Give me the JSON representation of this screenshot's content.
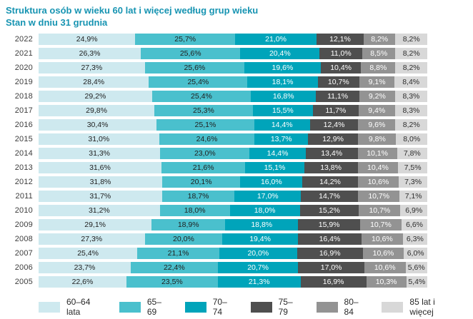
{
  "title": {
    "line1": "Struktura osób w wieku 60 lat i więcej według grup wieku",
    "line2": "Stan w dniu 31 grudnia"
  },
  "colors": {
    "title_text": "#1794b2",
    "year_label_text": "#3d3d3d",
    "background": "#ffffff"
  },
  "chart_data": {
    "type": "bar",
    "orientation": "horizontal",
    "stacked": true,
    "percent_total": 100,
    "unit": "%",
    "value_format": "comma-decimal-percent",
    "legend_position": "bottom",
    "grid": false,
    "categories": [
      "2022",
      "2021",
      "2020",
      "2019",
      "2018",
      "2017",
      "2016",
      "2015",
      "2014",
      "2013",
      "2012",
      "2011",
      "2010",
      "2009",
      "2008",
      "2007",
      "2006",
      "2005"
    ],
    "series": [
      {
        "key": "60-64",
        "name": "60–64 lata",
        "color": "#cee9ef",
        "text_color": "#1f1f1f",
        "values": [
          24.9,
          26.3,
          27.3,
          28.4,
          29.2,
          29.8,
          30.4,
          31.0,
          31.3,
          31.6,
          31.8,
          31.7,
          31.2,
          29.1,
          27.3,
          25.4,
          23.7,
          22.6
        ]
      },
      {
        "key": "65-69",
        "name": "65–69",
        "color": "#4ac0cd",
        "text_color": "#1f1f1f",
        "values": [
          25.7,
          25.6,
          25.6,
          25.4,
          25.4,
          25.3,
          25.1,
          24.6,
          23.0,
          21.6,
          20.1,
          18.7,
          18.0,
          18.9,
          20.0,
          21.1,
          22.4,
          23.5
        ]
      },
      {
        "key": "70-74",
        "name": "70–74",
        "color": "#00a4ba",
        "text_color": "#ffffff",
        "values": [
          21.0,
          20.4,
          19.6,
          18.1,
          16.8,
          15.5,
          14.4,
          13.7,
          14.4,
          15.1,
          16.0,
          17.0,
          18.0,
          18.8,
          19.4,
          20.0,
          20.7,
          21.3
        ]
      },
      {
        "key": "75-79",
        "name": "75–79",
        "color": "#4f4f4f",
        "text_color": "#ffffff",
        "values": [
          12.1,
          11.0,
          10.4,
          10.7,
          11.1,
          11.7,
          12.4,
          12.9,
          13.4,
          13.8,
          14.2,
          14.7,
          15.2,
          15.9,
          16.4,
          16.9,
          17.0,
          16.9
        ]
      },
      {
        "key": "80-84",
        "name": "80–84",
        "color": "#939393",
        "text_color": "#ffffff",
        "values": [
          8.2,
          8.5,
          8.8,
          9.1,
          9.2,
          9.4,
          9.6,
          9.8,
          10.1,
          10.4,
          10.6,
          10.7,
          10.7,
          10.7,
          10.6,
          10.6,
          10.6,
          10.3
        ]
      },
      {
        "key": "85plus",
        "name": "85 lat i więcej",
        "color": "#d8d8d8",
        "text_color": "#2e2e2e",
        "values": [
          8.2,
          8.2,
          8.2,
          8.4,
          8.3,
          8.3,
          8.2,
          8.0,
          7.8,
          7.5,
          7.3,
          7.1,
          6.9,
          6.6,
          6.3,
          6.0,
          5.6,
          5.4
        ]
      }
    ]
  }
}
